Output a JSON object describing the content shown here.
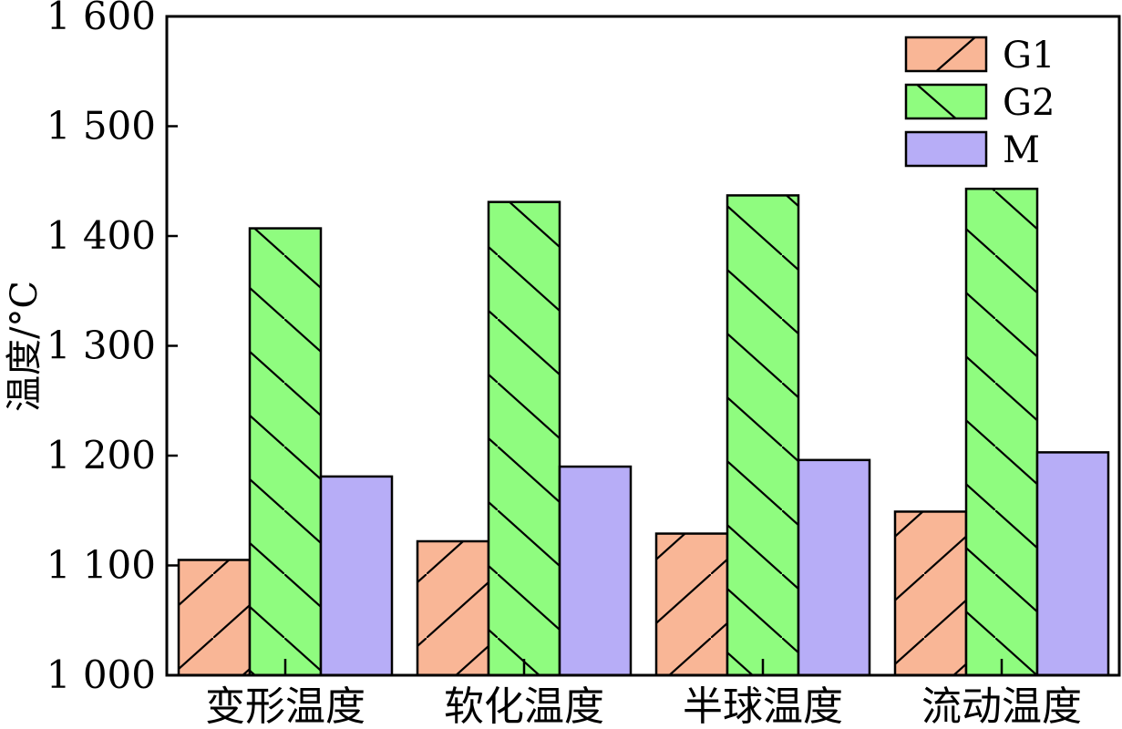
{
  "chart_data": {
    "type": "bar",
    "categories": [
      "变形温度",
      "软化温度",
      "半球温度",
      "流动温度"
    ],
    "series": [
      {
        "name": "G1",
        "values": [
          1105,
          1122,
          1129,
          1149
        ],
        "color": "#f9b696",
        "pattern": "forward-diagonal-hatch"
      },
      {
        "name": "G2",
        "values": [
          1407,
          1431,
          1437,
          1443
        ],
        "color": "#8ffc7f",
        "pattern": "backward-diagonal-hatch"
      },
      {
        "name": "M",
        "values": [
          1181,
          1190,
          1196,
          1203
        ],
        "color": "#b7adf7",
        "pattern": "solid"
      }
    ],
    "ylabel": "温度/°C",
    "xlabel": "",
    "ylim": [
      1000,
      1600
    ],
    "yticks": [
      1000,
      1100,
      1200,
      1300,
      1400,
      1500,
      1600
    ],
    "ytick_labels": [
      "1 000",
      "1 100",
      "1 200",
      "1 300",
      "1 400",
      "1 500",
      "1 600"
    ],
    "legend_position": "top-right",
    "grid": false
  }
}
